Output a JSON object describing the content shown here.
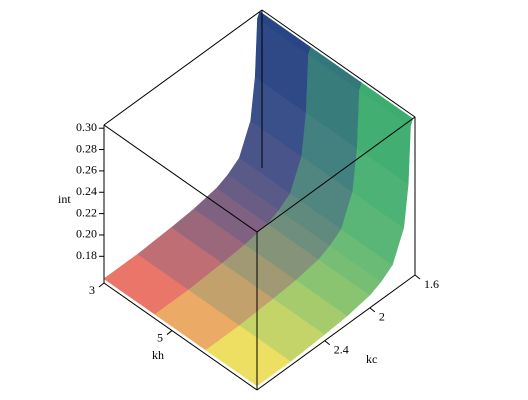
{
  "chart_data": {
    "type": "surface",
    "zlabel": "int",
    "xlabel": "kh",
    "ylabel": "kc",
    "kh": [
      3,
      4.5,
      6,
      7.5
    ],
    "kc": [
      1.62,
      1.64,
      1.66,
      1.7,
      1.8,
      1.9,
      2.0,
      2.2,
      2.4,
      2.7,
      3.0
    ],
    "z": [
      [
        0.303,
        0.298,
        0.245,
        0.207,
        0.18,
        0.172,
        0.167,
        0.163,
        0.161,
        0.159,
        0.159
      ],
      [
        0.303,
        0.298,
        0.245,
        0.207,
        0.18,
        0.172,
        0.167,
        0.163,
        0.161,
        0.159,
        0.159
      ],
      [
        0.303,
        0.298,
        0.245,
        0.207,
        0.18,
        0.172,
        0.167,
        0.163,
        0.161,
        0.159,
        0.159
      ],
      [
        0.303,
        0.298,
        0.245,
        0.207,
        0.18,
        0.172,
        0.167,
        0.163,
        0.161,
        0.159,
        0.159
      ]
    ],
    "khlim": [
      3,
      7.5
    ],
    "kclim": [
      1.6,
      3.0
    ],
    "zlim": [
      0.155,
      0.303
    ],
    "khticks": [
      3,
      5
    ],
    "kcticks": [
      1.6,
      2.0,
      2.4
    ],
    "zticks": [
      {
        "value": 0.18,
        "label": "0.18"
      },
      {
        "value": 0.2,
        "label": "0.20"
      },
      0.22,
      0.24,
      0.26,
      0.28,
      {
        "value": 0.3,
        "label": "0.30"
      }
    ],
    "corner_colors": [
      "#1e2a8c",
      "#3cc46a",
      "#ff4d55",
      "#ffff4a"
    ]
  }
}
